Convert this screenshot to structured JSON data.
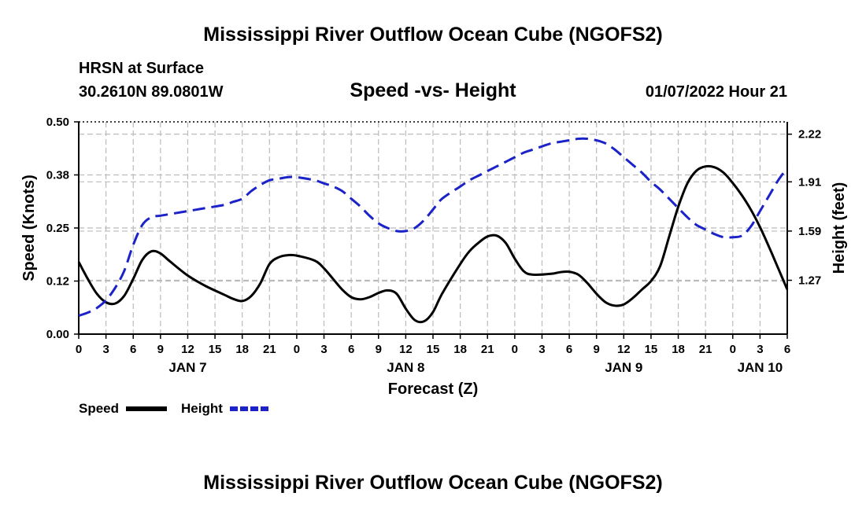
{
  "header": {
    "title": "Mississippi River Outflow Ocean Cube (NGOFS2)",
    "station": "HRSN at Surface",
    "location": "30.2610N  89.0801W",
    "plot_title": "Speed -vs- Height",
    "timestamp": "01/07/2022 Hour 21"
  },
  "footer": {
    "title": "Mississippi River Outflow Ocean Cube (NGOFS2)"
  },
  "colors": {
    "speed": "#000000",
    "height": "#1a22c8",
    "grid": "#bbbbbb"
  },
  "chart_data": {
    "type": "line",
    "title": "Speed -vs- Height",
    "xlabel": "Forecast (Z)",
    "ylabel": "Speed (Knots)",
    "y2label": "Height (feet)",
    "xlim": [
      0,
      78
    ],
    "ylim": [
      0,
      0.5
    ],
    "y2lim": [
      0.92,
      2.3
    ],
    "x_ticks": [
      0,
      3,
      6,
      9,
      12,
      15,
      18,
      21,
      24,
      27,
      30,
      33,
      36,
      39,
      42,
      45,
      48,
      51,
      54,
      57,
      60,
      63,
      66,
      69,
      72,
      75,
      78
    ],
    "x_tick_labels": [
      "0",
      "3",
      "6",
      "9",
      "12",
      "15",
      "18",
      "21",
      "0",
      "3",
      "6",
      "9",
      "12",
      "15",
      "18",
      "21",
      "0",
      "3",
      "6",
      "9",
      "12",
      "15",
      "18",
      "21",
      "0",
      "3",
      "6"
    ],
    "date_labels": [
      {
        "x": 12,
        "label": "JAN 7"
      },
      {
        "x": 36,
        "label": "JAN 8"
      },
      {
        "x": 60,
        "label": "JAN 9"
      },
      {
        "x": 75,
        "label": "JAN 10"
      }
    ],
    "y_ticks": [
      0.0,
      0.125,
      0.25,
      0.375,
      0.5
    ],
    "y_tick_labels": [
      "0.00",
      "0.12",
      "0.25",
      "0.38",
      "0.50"
    ],
    "y2_ticks": [
      1.27,
      1.59,
      1.91,
      2.22
    ],
    "y2_tick_labels": [
      "1.27",
      "1.59",
      "1.91",
      "2.22"
    ],
    "legend": [
      {
        "name": "Speed",
        "style": "solid"
      },
      {
        "name": "Height",
        "style": "dashed"
      }
    ],
    "series": [
      {
        "name": "Speed",
        "axis": "left",
        "style": "solid",
        "x": [
          0,
          1,
          2,
          3,
          4,
          5,
          6,
          7,
          8,
          9,
          10,
          12,
          14,
          16,
          17,
          18,
          19,
          20,
          21,
          22,
          23,
          24,
          26,
          27,
          28,
          29,
          30,
          31,
          32,
          33,
          34,
          35,
          36,
          37,
          38,
          39,
          40,
          42,
          43,
          44,
          45,
          46,
          47,
          48,
          49,
          50,
          52,
          53,
          54,
          55,
          56,
          57,
          58,
          59,
          60,
          61,
          62,
          63,
          64,
          65,
          66,
          67,
          68,
          69,
          70,
          71,
          72,
          73,
          74,
          75,
          76,
          77,
          78
        ],
        "values": [
          0.17,
          0.13,
          0.095,
          0.075,
          0.072,
          0.09,
          0.13,
          0.175,
          0.195,
          0.19,
          0.172,
          0.138,
          0.113,
          0.093,
          0.083,
          0.078,
          0.09,
          0.12,
          0.165,
          0.181,
          0.186,
          0.185,
          0.173,
          0.155,
          0.13,
          0.105,
          0.087,
          0.082,
          0.087,
          0.097,
          0.103,
          0.095,
          0.06,
          0.033,
          0.03,
          0.052,
          0.095,
          0.165,
          0.195,
          0.215,
          0.23,
          0.232,
          0.215,
          0.178,
          0.148,
          0.14,
          0.142,
          0.146,
          0.147,
          0.14,
          0.12,
          0.095,
          0.075,
          0.067,
          0.07,
          0.085,
          0.105,
          0.125,
          0.16,
          0.23,
          0.3,
          0.355,
          0.385,
          0.395,
          0.393,
          0.38,
          0.356,
          0.327,
          0.293,
          0.252,
          0.205,
          0.155,
          0.105
        ]
      },
      {
        "name": "Height",
        "axis": "right",
        "style": "dashed",
        "x": [
          0,
          1,
          2,
          3,
          4,
          5,
          6,
          7,
          8,
          9,
          10,
          12,
          14,
          16,
          17,
          18,
          19,
          20,
          21,
          22,
          23,
          24,
          26,
          27,
          28,
          29,
          30,
          31,
          32,
          33,
          34,
          35,
          36,
          37,
          38,
          39,
          40,
          42,
          43,
          44,
          45,
          46,
          47,
          48,
          49,
          50,
          52,
          53,
          54,
          55,
          56,
          57,
          58,
          59,
          60,
          61,
          62,
          63,
          64,
          65,
          66,
          67,
          68,
          69,
          70,
          71,
          72,
          73,
          74,
          75,
          76,
          77,
          78
        ],
        "values": [
          1.04,
          1.06,
          1.09,
          1.14,
          1.22,
          1.33,
          1.5,
          1.63,
          1.68,
          1.69,
          1.7,
          1.72,
          1.74,
          1.76,
          1.78,
          1.8,
          1.85,
          1.89,
          1.92,
          1.93,
          1.94,
          1.94,
          1.92,
          1.9,
          1.88,
          1.85,
          1.8,
          1.75,
          1.69,
          1.64,
          1.61,
          1.59,
          1.59,
          1.61,
          1.66,
          1.73,
          1.8,
          1.88,
          1.92,
          1.95,
          1.98,
          2.01,
          2.04,
          2.07,
          2.1,
          2.12,
          2.16,
          2.17,
          2.18,
          2.19,
          2.19,
          2.18,
          2.16,
          2.12,
          2.07,
          2.02,
          1.97,
          1.91,
          1.86,
          1.8,
          1.74,
          1.68,
          1.63,
          1.6,
          1.57,
          1.55,
          1.55,
          1.56,
          1.62,
          1.72,
          1.82,
          1.92,
          2.0
        ]
      }
    ]
  }
}
